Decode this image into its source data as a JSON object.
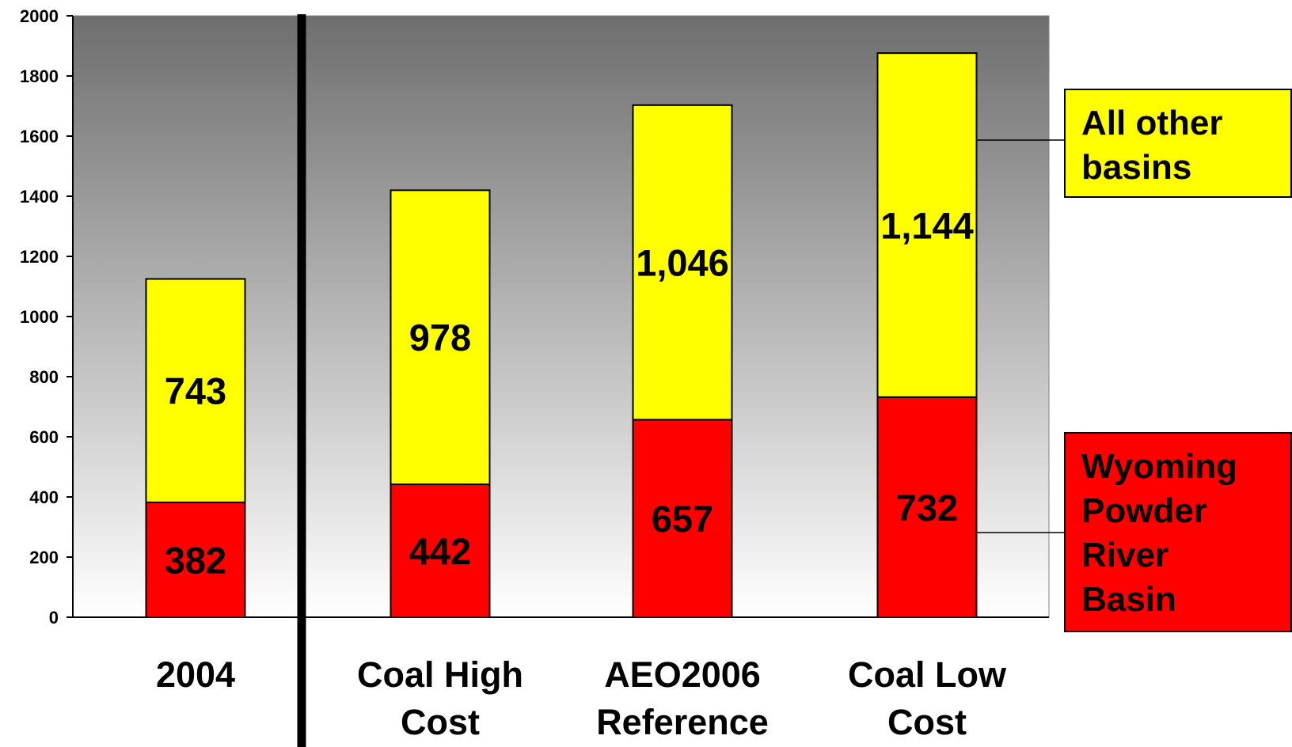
{
  "chart_data": {
    "type": "bar",
    "stacked": true,
    "categories": [
      "2004",
      "Coal High Cost",
      "AEO2006 Reference",
      "Coal Low Cost"
    ],
    "category_lines": [
      [
        "2004"
      ],
      [
        "Coal High",
        "Cost"
      ],
      [
        "AEO2006",
        "Reference"
      ],
      [
        "Coal Low",
        "Cost"
      ]
    ],
    "series": [
      {
        "name": "Wyoming Powder River Basin",
        "legend_lines": [
          "Wyoming",
          "Powder",
          "River",
          "Basin"
        ],
        "values": [
          382,
          442,
          657,
          732
        ],
        "labels": [
          "382",
          "442",
          "657",
          "732"
        ],
        "color": "#FF0000"
      },
      {
        "name": "All other basins",
        "legend_lines": [
          "All other",
          "basins"
        ],
        "values": [
          743,
          978,
          1046,
          1144
        ],
        "labels": [
          "743",
          "978",
          "1,046",
          "1,144"
        ],
        "color": "#FFFF00"
      }
    ],
    "ylim": [
      0,
      2000
    ],
    "yticks": [
      "0",
      "200",
      "400",
      "600",
      "800",
      "1000",
      "1200",
      "1400",
      "1600",
      "1800",
      "2000"
    ],
    "title": "",
    "xlabel": "",
    "ylabel": "",
    "grid": false,
    "legend_placement": "right",
    "plot_background": "gradient dark gray to white"
  }
}
